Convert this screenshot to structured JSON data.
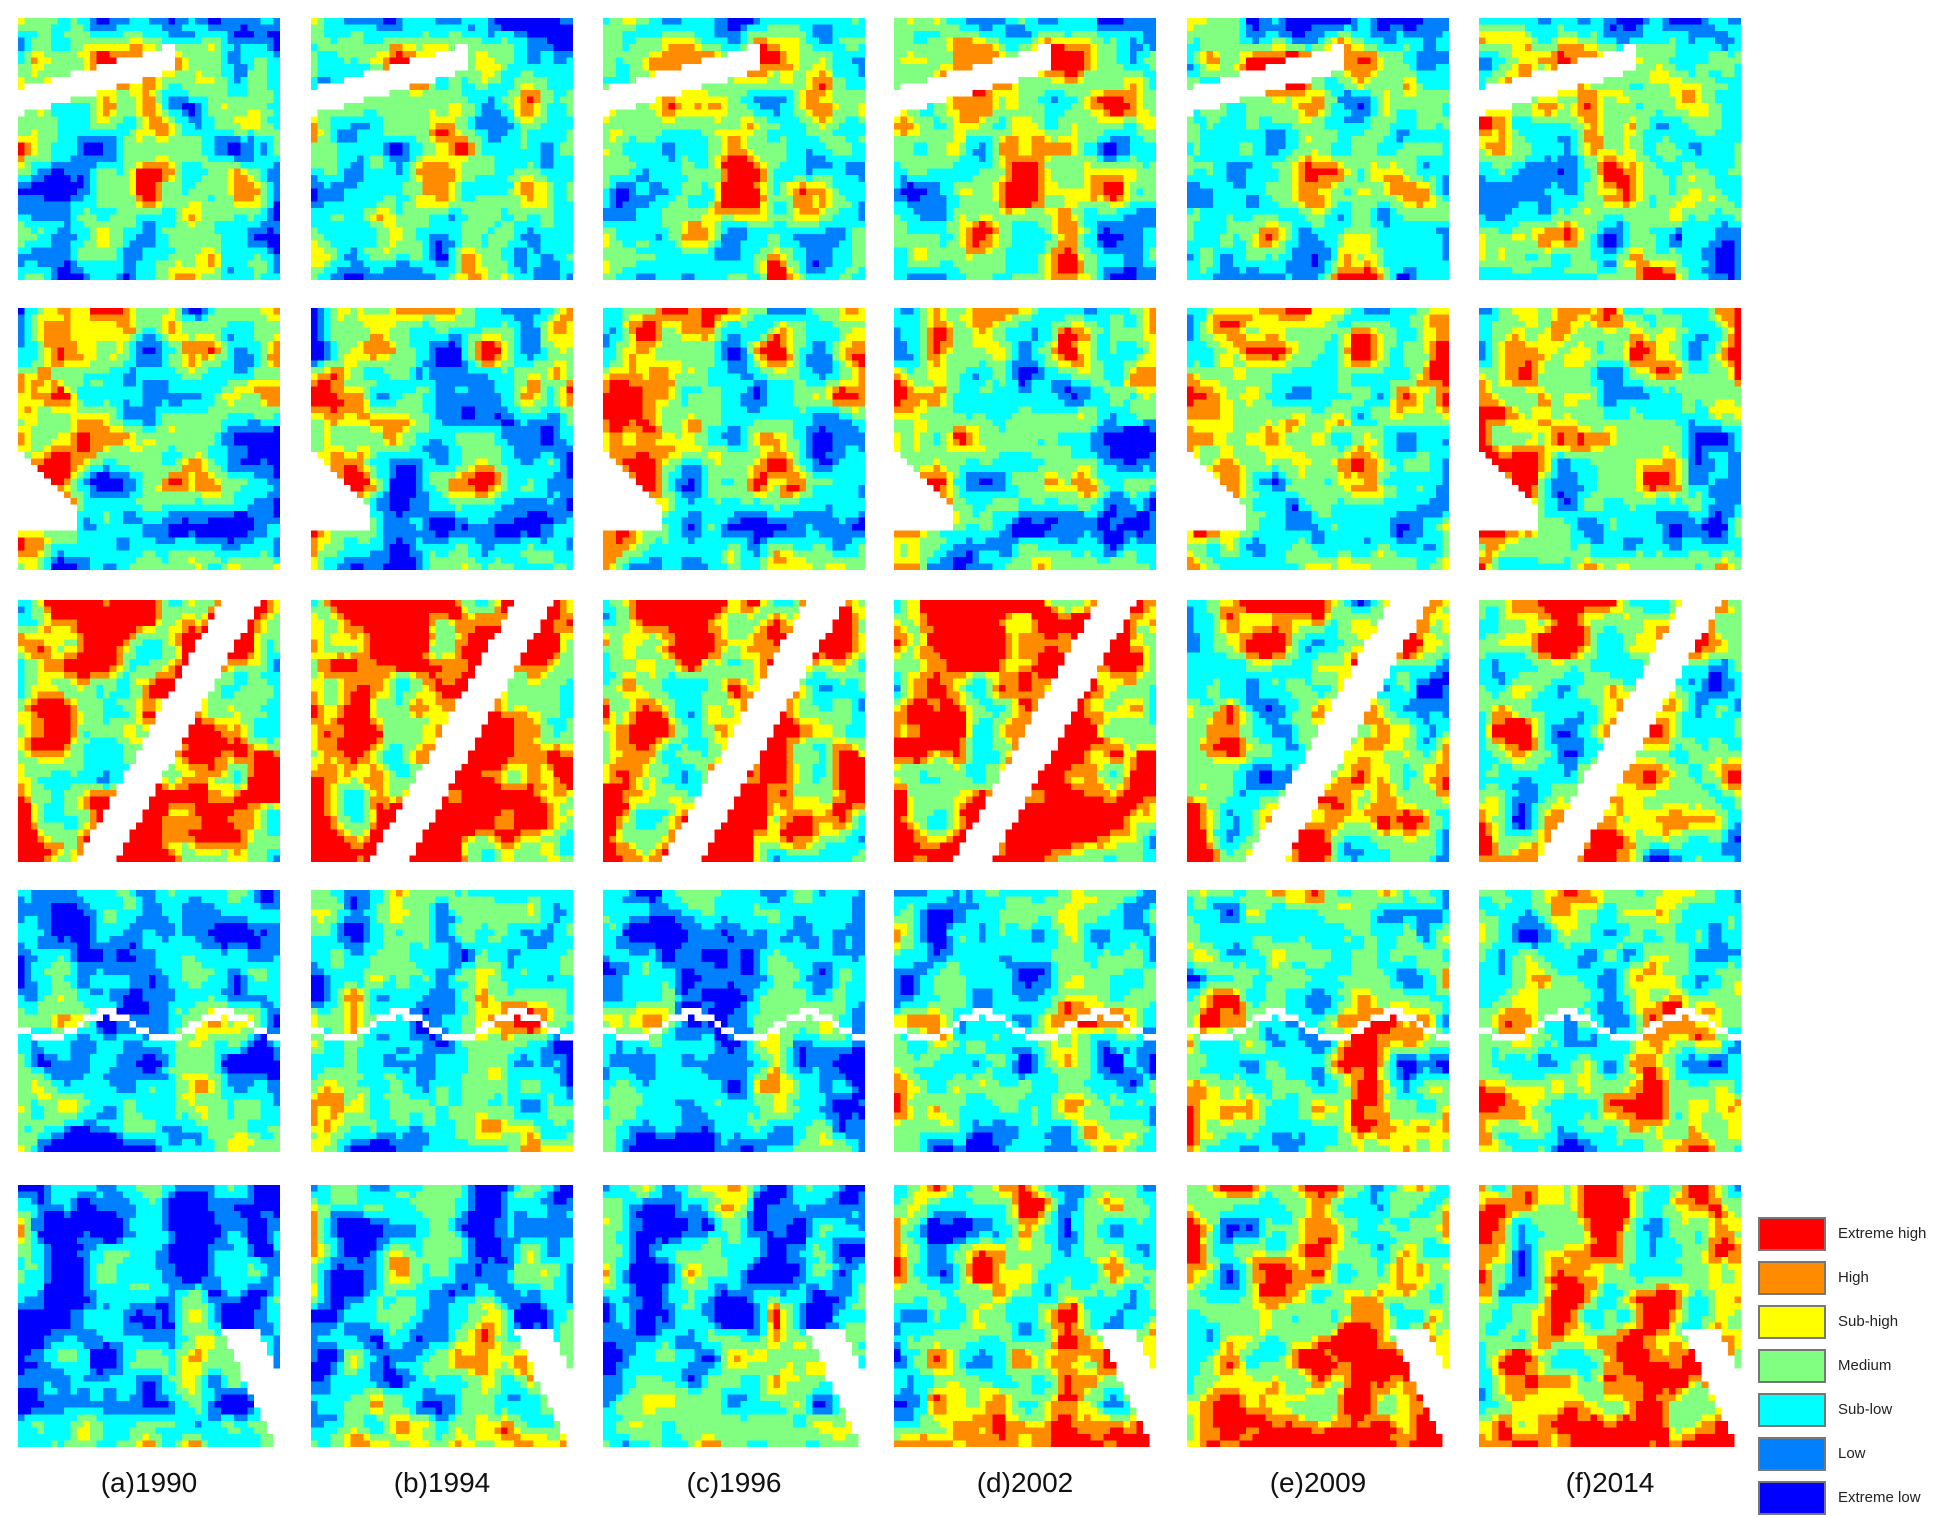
{
  "years": [
    "(a)1990",
    "(b)1994",
    "(c)1996",
    "(d)2002",
    "(e)2009",
    "(f)2014"
  ],
  "legend": [
    {
      "label": "Extreme high",
      "color": "#ff0000"
    },
    {
      "label": "High",
      "color": "#ff8c00"
    },
    {
      "label": "Sub-high",
      "color": "#ffff00"
    },
    {
      "label": "Medium",
      "color": "#80ff80"
    },
    {
      "label": "Sub-low",
      "color": "#00ffff"
    },
    {
      "label": "Low",
      "color": "#0080ff"
    },
    {
      "label": "Extreme low",
      "color": "#0000ff"
    }
  ]
}
